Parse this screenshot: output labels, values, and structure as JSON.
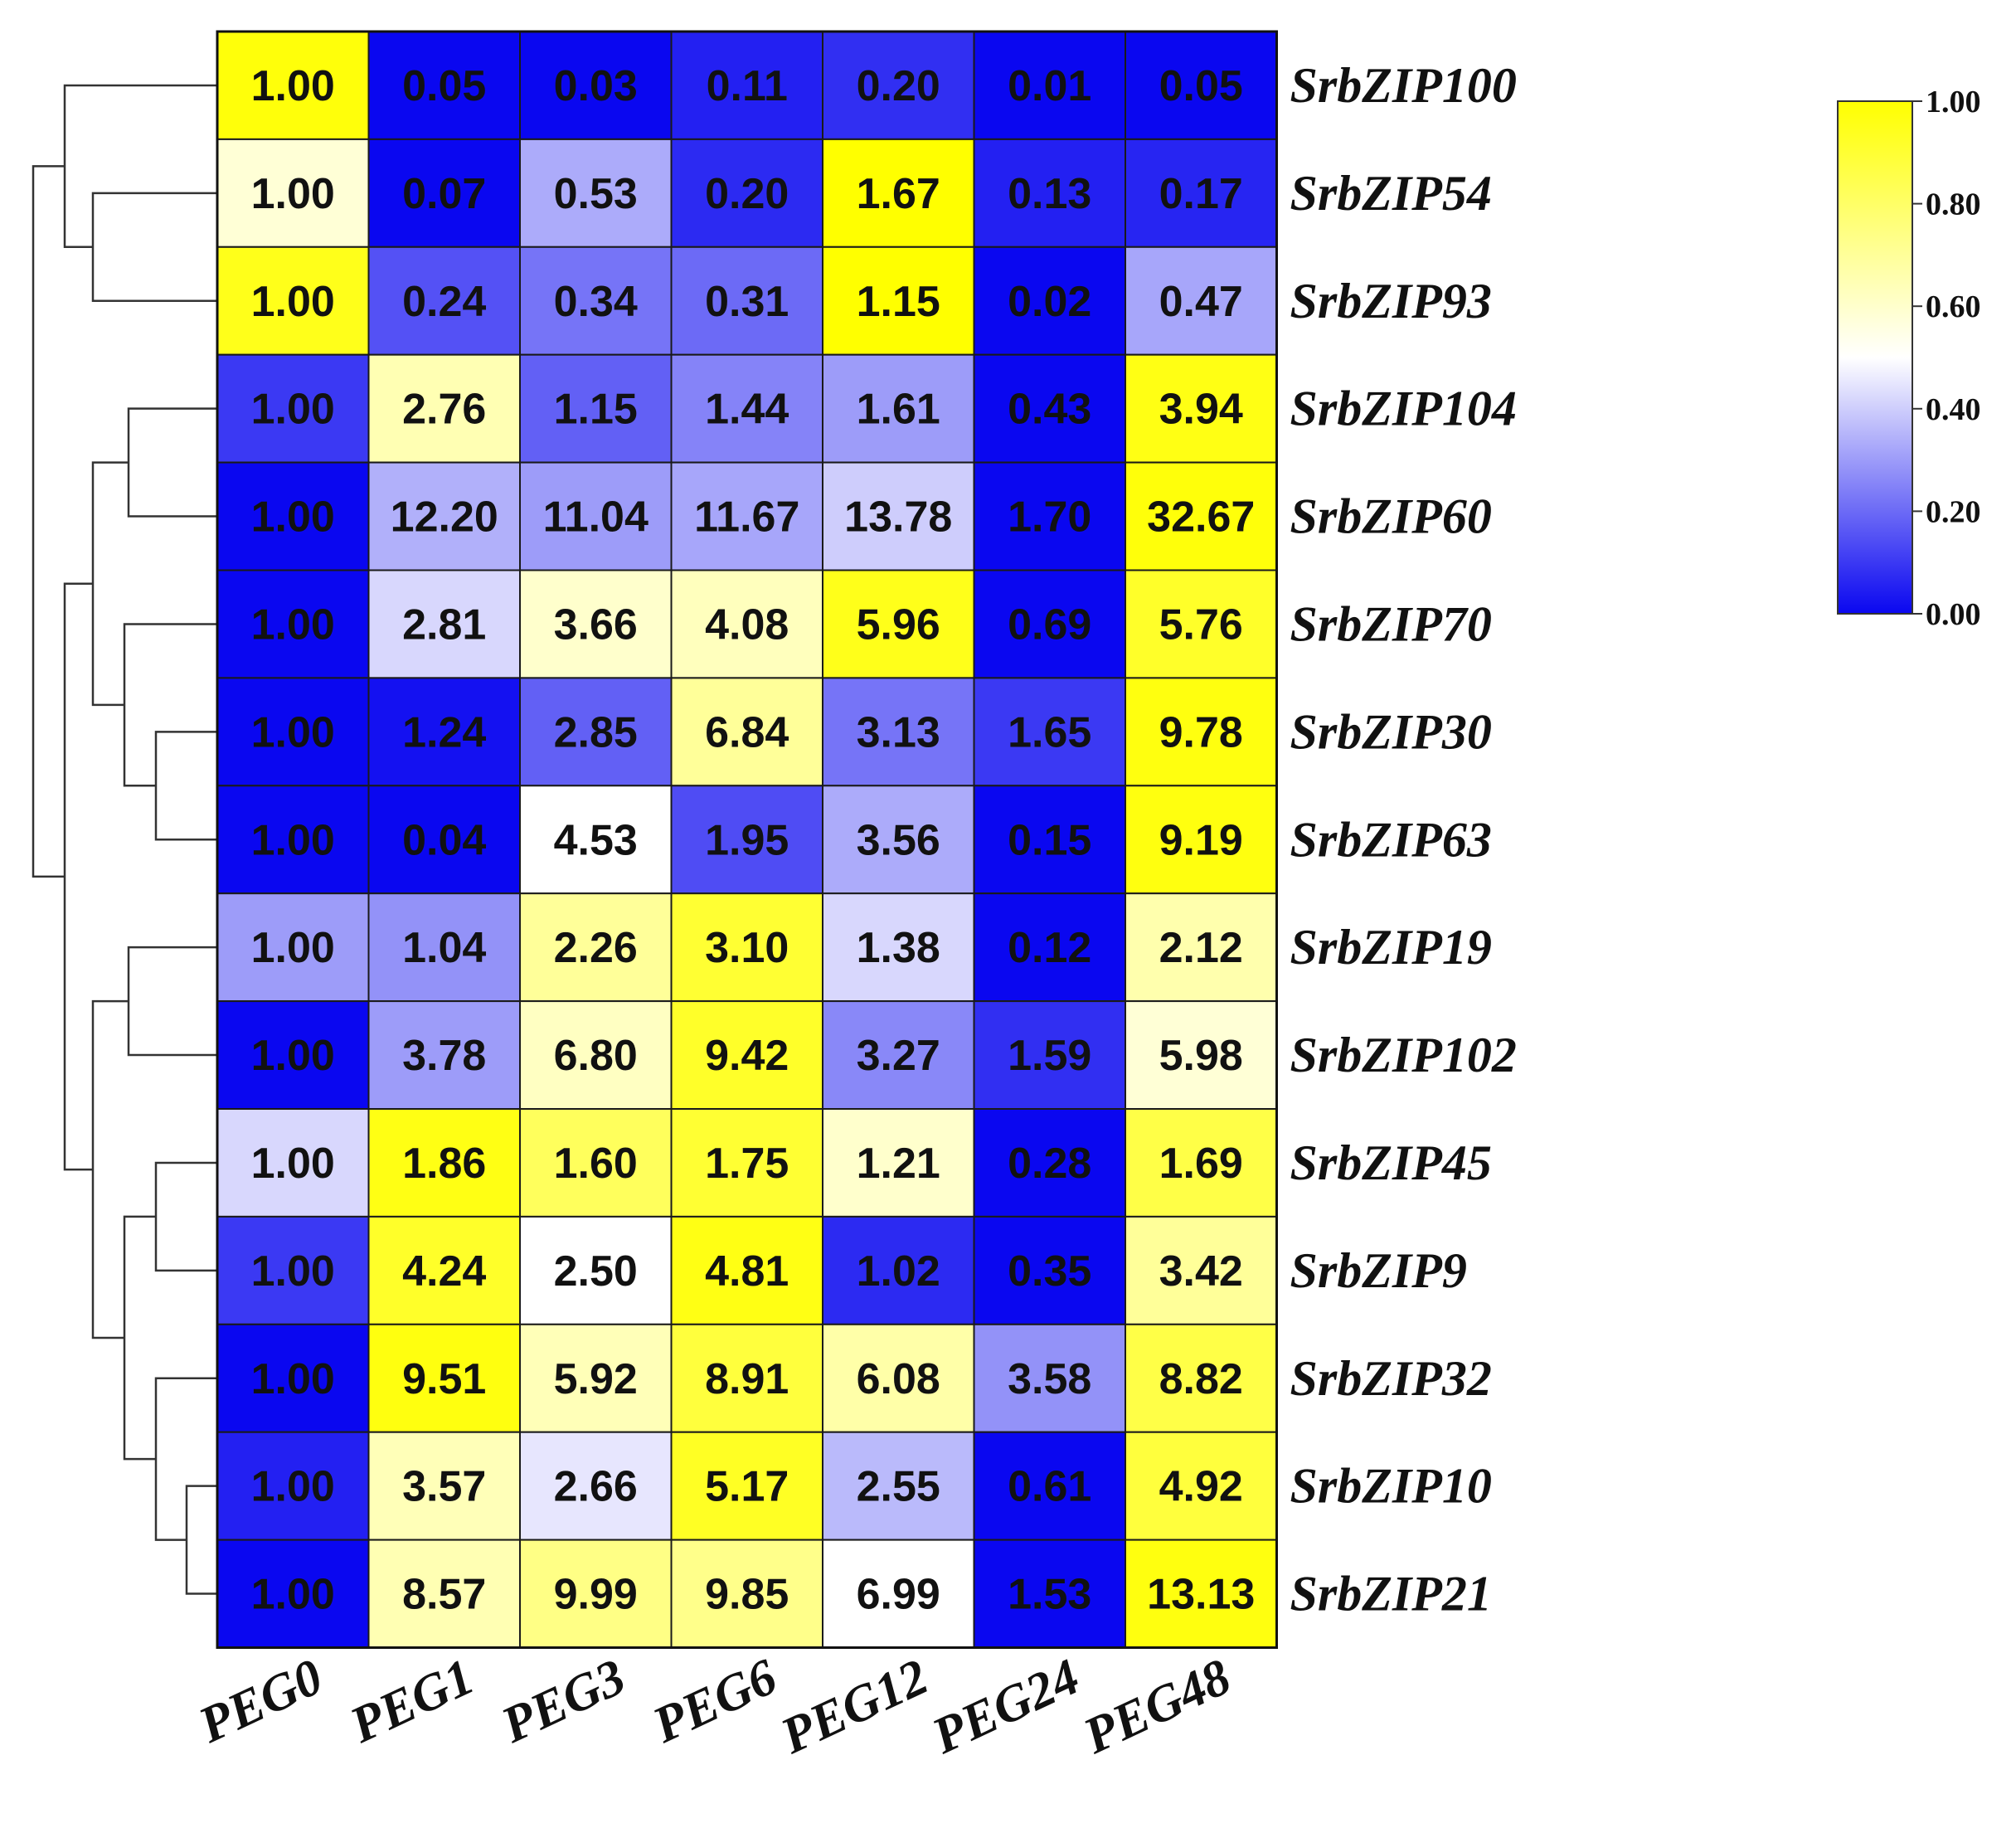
{
  "chart_data": {
    "type": "heatmap",
    "title": "",
    "xlabel": "",
    "ylabel": "",
    "columns": [
      "PEG0",
      "PEG1",
      "PEG3",
      "PEG6",
      "PEG12",
      "PEG24",
      "PEG48"
    ],
    "rows": [
      "SrbZIP100",
      "SrbZIP54",
      "SrbZIP93",
      "SrbZIP104",
      "SrbZIP60",
      "SrbZIP70",
      "SrbZIP30",
      "SrbZIP63",
      "SrbZIP19",
      "SrbZIP102",
      "SrbZIP45",
      "SrbZIP9",
      "SrbZIP32",
      "SrbZIP10",
      "SrbZIP21"
    ],
    "values": [
      [
        "1.00",
        "0.05",
        "0.03",
        "0.11",
        "0.20",
        "0.01",
        "0.05"
      ],
      [
        "1.00",
        "0.07",
        "0.53",
        "0.20",
        "1.67",
        "0.13",
        "0.17"
      ],
      [
        "1.00",
        "0.24",
        "0.34",
        "0.31",
        "1.15",
        "0.02",
        "0.47"
      ],
      [
        "1.00",
        "2.76",
        "1.15",
        "1.44",
        "1.61",
        "0.43",
        "3.94"
      ],
      [
        "1.00",
        "12.20",
        "11.04",
        "11.67",
        "13.78",
        "1.70",
        "32.67"
      ],
      [
        "1.00",
        "2.81",
        "3.66",
        "4.08",
        "5.96",
        "0.69",
        "5.76"
      ],
      [
        "1.00",
        "1.24",
        "2.85",
        "6.84",
        "3.13",
        "1.65",
        "9.78"
      ],
      [
        "1.00",
        "0.04",
        "4.53",
        "1.95",
        "3.56",
        "0.15",
        "9.19"
      ],
      [
        "1.00",
        "1.04",
        "2.26",
        "3.10",
        "1.38",
        "0.12",
        "2.12"
      ],
      [
        "1.00",
        "3.78",
        "6.80",
        "9.42",
        "3.27",
        "1.59",
        "5.98"
      ],
      [
        "1.00",
        "1.86",
        "1.60",
        "1.75",
        "1.21",
        "0.28",
        "1.69"
      ],
      [
        "1.00",
        "4.24",
        "2.50",
        "4.81",
        "1.02",
        "0.35",
        "3.42"
      ],
      [
        "1.00",
        "9.51",
        "5.92",
        "8.91",
        "6.08",
        "3.58",
        "8.82"
      ],
      [
        "1.00",
        "3.57",
        "2.66",
        "5.17",
        "2.55",
        "0.61",
        "4.92"
      ],
      [
        "1.00",
        "8.57",
        "9.99",
        "9.85",
        "6.99",
        "1.53",
        "13.13"
      ]
    ],
    "color_levels": [
      [
        0.98,
        0.0,
        0.0,
        0.05,
        0.08,
        0.0,
        0.0
      ],
      [
        0.58,
        0.0,
        0.33,
        0.07,
        1.0,
        0.05,
        0.06
      ],
      [
        0.95,
        0.15,
        0.22,
        0.2,
        1.0,
        0.0,
        0.32
      ],
      [
        0.1,
        0.65,
        0.18,
        0.25,
        0.3,
        0.0,
        0.96
      ],
      [
        0.0,
        0.34,
        0.3,
        0.32,
        0.4,
        0.0,
        0.98
      ],
      [
        0.0,
        0.42,
        0.6,
        0.63,
        0.95,
        0.0,
        0.92
      ],
      [
        0.0,
        0.02,
        0.18,
        0.7,
        0.22,
        0.1,
        0.97
      ],
      [
        0.0,
        0.0,
        0.5,
        0.14,
        0.33,
        0.0,
        0.97
      ],
      [
        0.3,
        0.28,
        0.7,
        0.9,
        0.42,
        0.0,
        0.66
      ],
      [
        0.0,
        0.3,
        0.62,
        0.92,
        0.26,
        0.08,
        0.58
      ],
      [
        0.42,
        0.96,
        0.82,
        0.9,
        0.6,
        0.0,
        0.86
      ],
      [
        0.1,
        0.92,
        0.5,
        0.96,
        0.07,
        0.0,
        0.7
      ],
      [
        0.0,
        0.97,
        0.64,
        0.88,
        0.67,
        0.28,
        0.86
      ],
      [
        0.05,
        0.64,
        0.45,
        0.93,
        0.36,
        0.0,
        0.88
      ],
      [
        0.0,
        0.65,
        0.74,
        0.73,
        0.5,
        0.0,
        0.97
      ]
    ],
    "colorscale": {
      "min": 0.0,
      "max": 1.0,
      "colors": [
        "#0a07f0",
        "#ffffff",
        "#ffff00"
      ],
      "ticks": [
        "0.00",
        "0.20",
        "0.40",
        "0.60",
        "0.80",
        "1.00"
      ],
      "placement": "top-right"
    },
    "dendrogram": "rows",
    "grid": true
  }
}
